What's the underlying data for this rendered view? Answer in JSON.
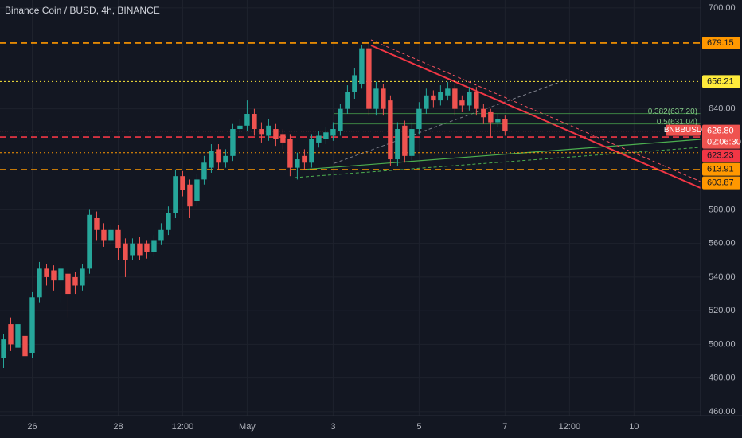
{
  "chart_data": {
    "type": "candlestick",
    "title": "Binance Coin / BUSD, 4h, BINANCE",
    "symbol": "BNBBUSD",
    "countdown": "02:06:30",
    "last_price": {
      "value": 626.8,
      "label": "626.80"
    },
    "up_color": "#26a69a",
    "down_color": "#ef5350",
    "x": [
      0,
      1,
      2,
      3,
      4,
      5,
      6,
      7,
      8,
      9,
      10,
      11,
      12,
      13,
      14,
      15,
      16,
      17,
      18,
      19,
      20,
      21,
      22,
      23,
      24,
      25,
      26,
      27,
      28,
      29,
      30,
      31,
      32,
      33,
      34,
      35,
      36,
      37,
      38,
      39,
      40,
      41,
      42,
      43,
      44,
      45,
      46,
      47,
      48,
      49,
      50,
      51,
      52,
      53,
      54,
      55,
      56,
      57,
      58,
      59,
      60,
      61,
      62,
      63,
      64,
      65,
      66,
      67,
      68,
      69,
      70
    ],
    "open": [
      492,
      512,
      498,
      505,
      495,
      528,
      545,
      544,
      538,
      542,
      540,
      535,
      545,
      575,
      568,
      562,
      568,
      560,
      553,
      560,
      560,
      555,
      562,
      568,
      578,
      600,
      595,
      585,
      598,
      605,
      616,
      608,
      612,
      628,
      630,
      637,
      628,
      624,
      628,
      625,
      622,
      605,
      612,
      608,
      620,
      622,
      624,
      627,
      640,
      650,
      655,
      676,
      640,
      652,
      645,
      610,
      630,
      612,
      628,
      640,
      648,
      645,
      648,
      652,
      645,
      642,
      650,
      640,
      638,
      632,
      634
    ],
    "high": [
      506,
      516,
      515,
      508,
      531,
      549,
      548,
      547,
      548,
      545,
      543,
      548,
      580,
      579,
      572,
      571,
      571,
      563,
      563,
      564,
      562,
      565,
      572,
      582,
      604,
      603,
      598,
      601,
      612,
      619,
      619,
      616,
      631,
      634,
      645,
      640,
      632,
      634,
      631,
      628,
      625,
      614,
      616,
      625,
      627,
      629,
      632,
      643,
      654,
      664,
      678,
      679,
      656,
      655,
      648,
      632,
      633,
      632,
      644,
      652,
      651,
      654,
      656,
      655,
      648,
      653,
      653,
      643,
      640,
      637,
      636
    ],
    "low": [
      486,
      496,
      495,
      478,
      492,
      525,
      535,
      532,
      525,
      516,
      530,
      532,
      542,
      562,
      558,
      559,
      550,
      540,
      550,
      550,
      551,
      552,
      559,
      565,
      575,
      588,
      575,
      582,
      595,
      602,
      604,
      605,
      609,
      624,
      627,
      624,
      620,
      621,
      618,
      616,
      600,
      598,
      604,
      605,
      617,
      619,
      621,
      624,
      637,
      646,
      652,
      636,
      636,
      636,
      606,
      606,
      608,
      609,
      625,
      637,
      641,
      642,
      645,
      636,
      638,
      639,
      636,
      631,
      623,
      629,
      624
    ],
    "close": [
      503,
      500,
      512,
      493,
      528,
      545,
      540,
      538,
      545,
      530,
      535,
      545,
      577,
      568,
      562,
      568,
      557,
      550,
      560,
      553,
      555,
      562,
      568,
      578,
      600,
      592,
      582,
      598,
      608,
      615,
      608,
      612,
      628,
      630,
      637,
      628,
      625,
      630,
      622,
      620,
      605,
      610,
      608,
      622,
      624,
      626,
      628,
      640,
      650,
      660,
      676,
      640,
      652,
      640,
      610,
      628,
      612,
      628,
      640,
      648,
      645,
      650,
      652,
      640,
      642,
      650,
      640,
      635,
      632,
      634,
      626.8
    ],
    "xlim": [
      -0.5,
      97.3
    ],
    "xticks": [
      {
        "value": 4,
        "label": "26"
      },
      {
        "value": 16,
        "label": "28"
      },
      {
        "value": 25,
        "label": "12:00"
      },
      {
        "value": 34,
        "label": "May"
      },
      {
        "value": 46,
        "label": "3"
      },
      {
        "value": 58,
        "label": "5"
      },
      {
        "value": 70,
        "label": "7"
      },
      {
        "value": 79,
        "label": "12:00"
      },
      {
        "value": 88,
        "label": "10"
      }
    ],
    "ylim": [
      457.6,
      704.7
    ],
    "yticks": [
      {
        "value": 700,
        "label": "700.00"
      },
      {
        "value": 640,
        "label": "640.00"
      },
      {
        "value": 580,
        "label": "580.00"
      },
      {
        "value": 560,
        "label": "560.00"
      },
      {
        "value": 540,
        "label": "540.00"
      },
      {
        "value": 520,
        "label": "520.00"
      },
      {
        "value": 500,
        "label": "500.00"
      },
      {
        "value": 480,
        "label": "480.00"
      },
      {
        "value": 460,
        "label": "460.00"
      }
    ],
    "levels": [
      {
        "value": 679.15,
        "color": "#ff9800",
        "style": "dashed"
      },
      {
        "value": 656.21,
        "color": "#ffeb3b",
        "style": "dotted"
      },
      {
        "value": 623.23,
        "color": "#f23645",
        "style": "dashed"
      },
      {
        "value": 613.91,
        "color": "#ff9800",
        "style": "dotted"
      },
      {
        "value": 603.87,
        "color": "#ff9800",
        "style": "dashed"
      }
    ],
    "fib_levels": [
      {
        "value": 637.2,
        "label": "0.382(637.20)"
      },
      {
        "value": 631.04,
        "label": "0.5(631.04)"
      }
    ],
    "grid": true
  }
}
